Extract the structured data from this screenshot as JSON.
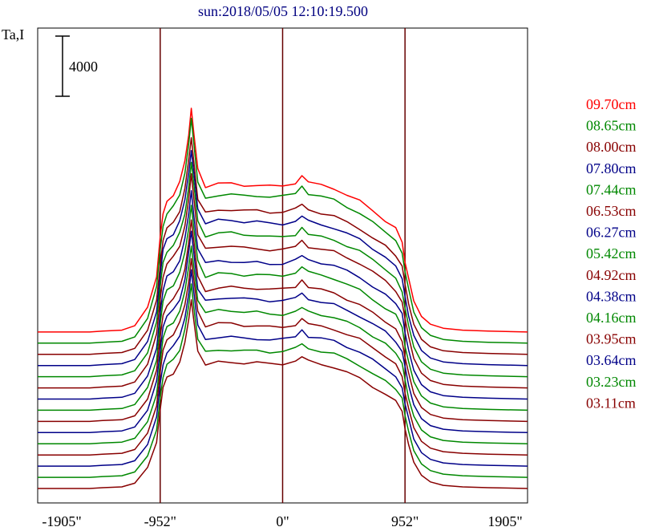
{
  "chart_data": {
    "type": "line",
    "title": "sun:2018/05/05 12:10:19.500",
    "ylabel": "Ta,I",
    "scale_bar_label": "4000",
    "x_ticks": [
      "-1905\"",
      "-952\"",
      "0\"",
      "952\"",
      "1905\""
    ],
    "x_tick_values": [
      -1905,
      -952,
      0,
      952,
      1905
    ],
    "xlim": [
      -1905,
      1905
    ],
    "vertical_reference_lines": [
      -952,
      0,
      952
    ],
    "grid": false,
    "legend_position": "right",
    "colors": {
      "red": "#ff0000",
      "green": "#008800",
      "darkred": "#880000",
      "blue": "#000088",
      "title": "#000080",
      "axis": "#000000",
      "refline": "#660000"
    },
    "profile_shape": [
      [
        -1905,
        0
      ],
      [
        -1500,
        0
      ],
      [
        -1400,
        30
      ],
      [
        -1250,
        60
      ],
      [
        -1150,
        200
      ],
      [
        -1050,
        800
      ],
      [
        -980,
        1800
      ],
      [
        -952,
        3000
      ],
      [
        -930,
        3800
      ],
      [
        -900,
        4200
      ],
      [
        -850,
        4400
      ],
      [
        -800,
        4800
      ],
      [
        -760,
        5500
      ],
      [
        -730,
        6400
      ],
      [
        -710,
        7200
      ],
      [
        -690,
        6400
      ],
      [
        -660,
        5200
      ],
      [
        -600,
        4700
      ],
      [
        -500,
        4800
      ],
      [
        -400,
        4800
      ],
      [
        -300,
        4750
      ],
      [
        -200,
        4750
      ],
      [
        -100,
        4700
      ],
      [
        0,
        4700
      ],
      [
        100,
        4800
      ],
      [
        150,
        5000
      ],
      [
        200,
        4800
      ],
      [
        300,
        4700
      ],
      [
        400,
        4600
      ],
      [
        500,
        4400
      ],
      [
        600,
        4200
      ],
      [
        700,
        3900
      ],
      [
        800,
        3600
      ],
      [
        880,
        3300
      ],
      [
        930,
        2900
      ],
      [
        952,
        2300
      ],
      [
        980,
        1700
      ],
      [
        1020,
        1000
      ],
      [
        1080,
        500
      ],
      [
        1150,
        250
      ],
      [
        1250,
        120
      ],
      [
        1400,
        60
      ],
      [
        1600,
        30
      ],
      [
        1905,
        0
      ]
    ],
    "series": [
      {
        "name": "09.70cm",
        "color": "red",
        "baseline": 5040,
        "scale": 1.0
      },
      {
        "name": "08.65cm",
        "color": "green",
        "baseline": 4680,
        "scale": 1.0
      },
      {
        "name": "08.00cm",
        "color": "darkred",
        "baseline": 4320,
        "scale": 0.97
      },
      {
        "name": "07.80cm",
        "color": "blue",
        "baseline": 3960,
        "scale": 0.97
      },
      {
        "name": "07.44cm",
        "color": "green",
        "baseline": 3600,
        "scale": 0.96
      },
      {
        "name": "06.53cm",
        "color": "darkred",
        "baseline": 3240,
        "scale": 0.95
      },
      {
        "name": "06.27cm",
        "color": "blue",
        "baseline": 2880,
        "scale": 0.93
      },
      {
        "name": "05.42cm",
        "color": "green",
        "baseline": 2520,
        "scale": 0.92
      },
      {
        "name": "04.92cm",
        "color": "darkred",
        "baseline": 2160,
        "scale": 0.9
      },
      {
        "name": "04.38cm",
        "color": "blue",
        "baseline": 1800,
        "scale": 0.9
      },
      {
        "name": "04.16cm",
        "color": "green",
        "baseline": 1440,
        "scale": 0.89
      },
      {
        "name": "03.95cm",
        "color": "darkred",
        "baseline": 1080,
        "scale": 0.88
      },
      {
        "name": "03.64cm",
        "color": "blue",
        "baseline": 720,
        "scale": 0.87
      },
      {
        "name": "03.23cm",
        "color": "green",
        "baseline": 360,
        "scale": 0.86
      },
      {
        "name": "03.11cm",
        "color": "darkred",
        "baseline": 0,
        "scale": 0.85
      }
    ],
    "ylim": [
      -200,
      10600
    ]
  }
}
